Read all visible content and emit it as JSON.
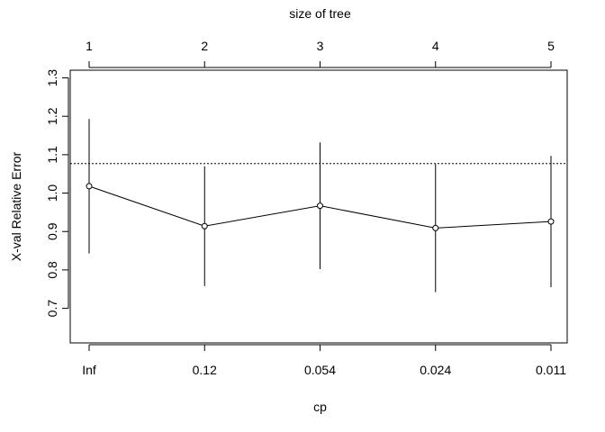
{
  "chart_data": {
    "type": "line",
    "xlabel": "cp",
    "ylabel": "X-val Relative Error",
    "top_axis_label": "size of tree",
    "categories": [
      "Inf",
      "0.12",
      "0.054",
      "0.024",
      "0.011"
    ],
    "top_categories": [
      "1",
      "2",
      "3",
      "4",
      "5"
    ],
    "ylim": [
      0.61,
      1.32
    ],
    "yticks": [
      "0.7",
      "0.8",
      "0.9",
      "1.0",
      "1.1",
      "1.2",
      "1.3"
    ],
    "ytick_values": [
      0.7,
      0.8,
      0.9,
      1.0,
      1.1,
      1.2,
      1.3
    ],
    "values": [
      1.018,
      0.914,
      0.967,
      0.909,
      0.926
    ],
    "error_low": [
      0.843,
      0.758,
      0.802,
      0.742,
      0.755
    ],
    "error_high": [
      1.193,
      1.07,
      1.132,
      1.076,
      1.097
    ],
    "reference_line": 1.077,
    "grid": false
  }
}
